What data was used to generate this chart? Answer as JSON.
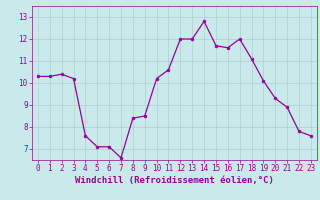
{
  "x": [
    0,
    1,
    2,
    3,
    4,
    5,
    6,
    7,
    8,
    9,
    10,
    11,
    12,
    13,
    14,
    15,
    16,
    17,
    18,
    19,
    20,
    21,
    22,
    23
  ],
  "y": [
    10.3,
    10.3,
    10.4,
    10.2,
    7.6,
    7.1,
    7.1,
    6.6,
    8.4,
    8.5,
    10.2,
    10.6,
    12.0,
    12.0,
    12.8,
    11.7,
    11.6,
    12.0,
    11.1,
    10.1,
    9.3,
    8.9,
    7.8,
    7.6
  ],
  "line_color": "#990099",
  "marker_color": "#990099",
  "bg_color": "#c8eaea",
  "grid_color": "#b0d0d0",
  "tick_color": "#990099",
  "xlabel": "Windchill (Refroidissement éolien,°C)",
  "xlabel_color": "#990099",
  "ylim": [
    6.5,
    13.5
  ],
  "xlim": [
    -0.5,
    23.5
  ],
  "yticks": [
    7,
    8,
    9,
    10,
    11,
    12,
    13
  ],
  "xticks": [
    0,
    1,
    2,
    3,
    4,
    5,
    6,
    7,
    8,
    9,
    10,
    11,
    12,
    13,
    14,
    15,
    16,
    17,
    18,
    19,
    20,
    21,
    22,
    23
  ],
  "tick_fontsize": 5.5,
  "xlabel_fontsize": 6.5,
  "linewidth": 0.9,
  "markersize": 2.0
}
